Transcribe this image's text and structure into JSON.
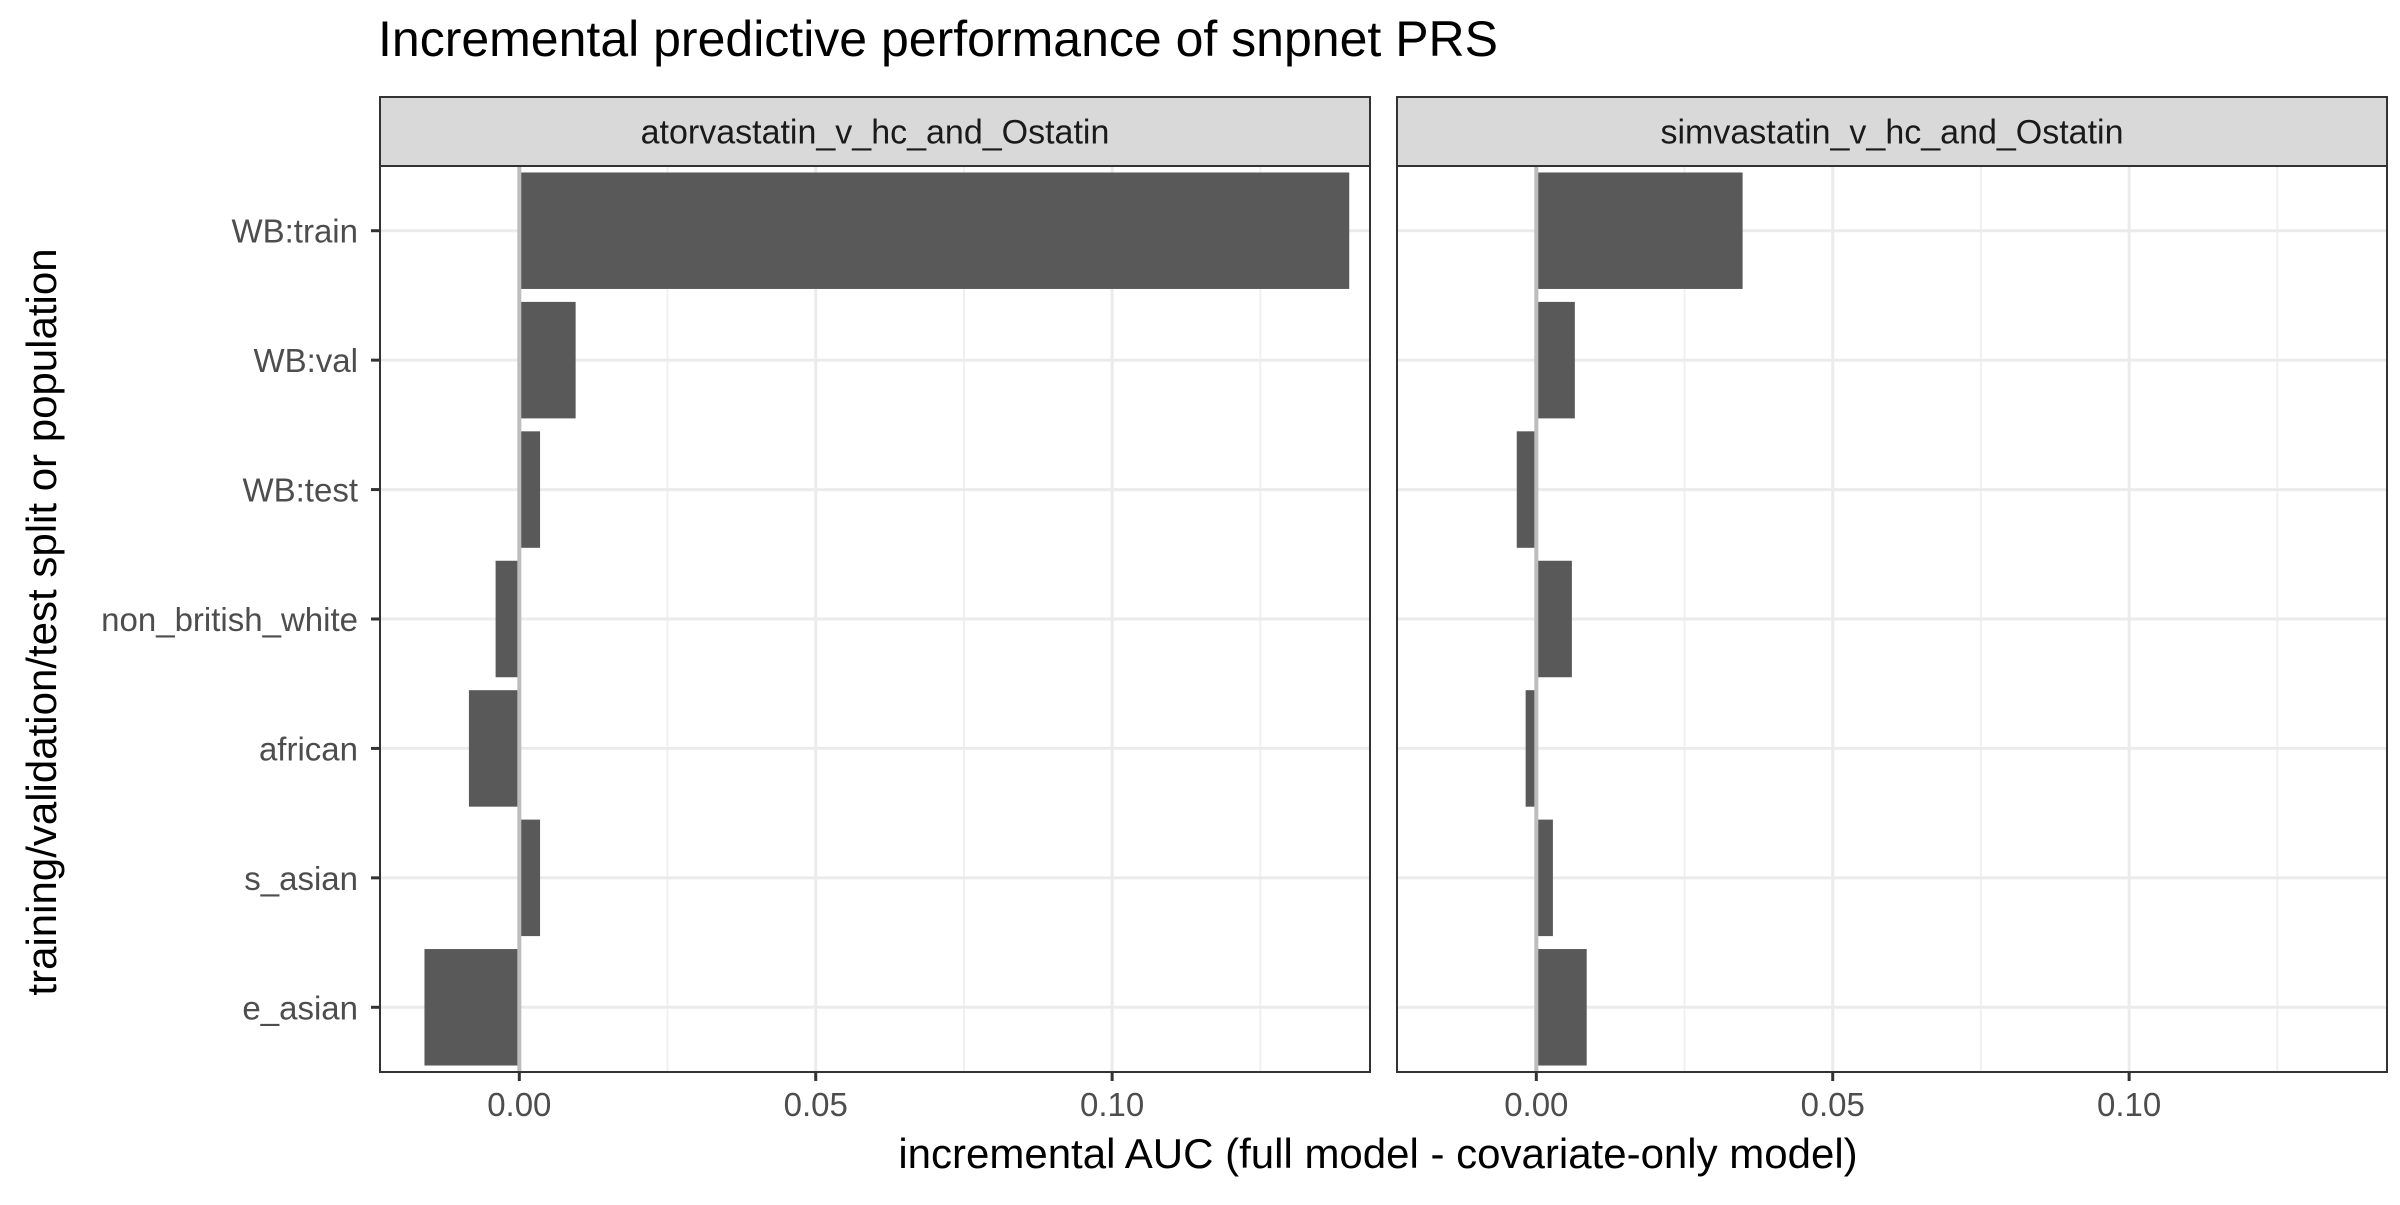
{
  "chart_data": {
    "type": "bar",
    "orientation": "horizontal",
    "title": "Incremental predictive performance of snpnet PRS",
    "xlabel": "incremental AUC (full model - covariate-only model)",
    "ylabel": "training/validation/test split or population",
    "categories": [
      "WB:train",
      "WB:val",
      "WB:test",
      "non_british_white",
      "african",
      "s_asian",
      "e_asian"
    ],
    "xlim": [
      -0.0235,
      0.1435
    ],
    "xticks": [
      0.0,
      0.05,
      0.1
    ],
    "xtick_labels": [
      "0.00",
      "0.05",
      "0.10"
    ],
    "grid": true,
    "reference_line": 0,
    "bar_color": "#595959",
    "panels": [
      {
        "name": "atorvastatin_v_hc_and_Ostatin",
        "values": [
          0.14,
          0.0095,
          0.0035,
          -0.004,
          -0.0085,
          0.0035,
          -0.016
        ]
      },
      {
        "name": "simvastatin_v_hc_and_Ostatin",
        "values": [
          0.0348,
          0.0065,
          -0.0033,
          0.006,
          -0.0018,
          0.0028,
          0.0085
        ]
      }
    ]
  }
}
